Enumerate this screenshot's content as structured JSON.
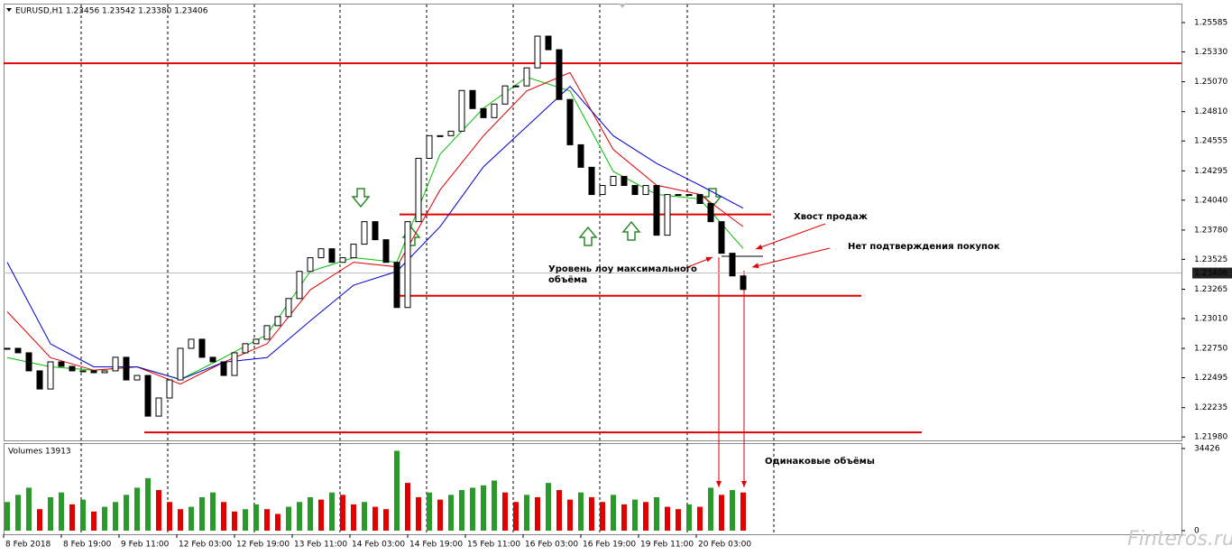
{
  "chart_data": [
    {
      "type": "candlestick",
      "title": "EURUSD,H1  1.23456 1.23542 1.23380 1.23406",
      "values": [
        1.22751,
        1.22712,
        1.22555,
        1.22397,
        1.22633,
        1.22594,
        1.22555,
        1.22555,
        1.22539,
        1.22555,
        1.22673,
        1.22476,
        1.22515,
        1.22161,
        1.22319,
        1.22476,
        1.22751,
        1.2283,
        1.22673,
        1.22633,
        1.22515,
        1.22712,
        1.22791,
        1.2283,
        1.22948,
        1.23027,
        1.23184,
        1.2342,
        1.23539,
        1.23617,
        1.23499,
        1.23539,
        1.23657,
        1.23853,
        1.23696,
        1.23499,
        1.23106,
        1.23853,
        1.24404,
        1.24601,
        1.24601,
        1.2464,
        1.24994,
        1.24837,
        1.24758,
        1.24876,
        1.25034,
        1.25034,
        1.25191,
        1.25467,
        1.25349,
        1.24916,
        1.24522,
        1.24326,
        1.24089,
        1.24168,
        1.24247,
        1.24168,
        1.24089,
        1.24168,
        1.23735,
        1.24089,
        1.24089,
        1.24089,
        1.24011,
        1.23853,
        1.23578,
        1.23381,
        1.23263
      ],
      "series": [
        {
          "color": "#00c000",
          "values": [
            1.2267,
            1.2259,
            1.2256,
            1.2259,
            1.2248,
            1.2267,
            1.2287,
            1.2342,
            1.2354,
            1.235,
            1.2444,
            1.2484,
            1.2511,
            1.2499,
            1.2429,
            1.2409,
            1.2405,
            1.2362
          ]
        },
        {
          "color": "#e00000",
          "values": [
            1.2307,
            1.2267,
            1.2256,
            1.2259,
            1.2244,
            1.2263,
            1.2279,
            1.2326,
            1.235,
            1.2346,
            1.2413,
            1.246,
            1.2499,
            1.2515,
            1.2448,
            1.2417,
            1.2409,
            1.2381
          ]
        },
        {
          "color": "#0000d0",
          "values": [
            1.235,
            1.2279,
            1.2259,
            1.2259,
            1.2248,
            1.2263,
            1.2267,
            1.2299,
            1.233,
            1.2342,
            1.2381,
            1.2433,
            1.2468,
            1.2503,
            1.246,
            1.2436,
            1.2417,
            1.2397
          ]
        }
      ],
      "ylim": [
        1.2195,
        1.2575
      ],
      "yticks": [
        1.25585,
        {
          "value": 1.2533,
          "label": "1.25330"
        },
        {
          "value": 1.2507,
          "label": "1.25070"
        },
        {
          "value": 1.2481,
          "label": "1.24810"
        },
        1.24555,
        1.24295,
        {
          "value": 1.2404,
          "label": "1.24040"
        },
        {
          "value": 1.2378,
          "label": "1.23780"
        },
        1.23525,
        1.23265,
        {
          "value": 1.2301,
          "label": "1.23010"
        },
        {
          "value": 1.2275,
          "label": "1.22750"
        },
        1.22495,
        1.22235,
        {
          "value": 1.2198,
          "label": "1.21980"
        }
      ],
      "current_price": 1.23406,
      "levels": {
        "color": "#e00000",
        "values": [
          1.25231,
          1.23916,
          1.23208,
          1.2202
        ]
      },
      "annotations": [
        "Хвост продаж",
        "Нет подтверждения покупок",
        "Уровень лоу максимального",
        "объёма",
        "Одинаковые объёмы"
      ]
    },
    {
      "type": "bar",
      "title": "Volumes 13913",
      "values": [
        12000,
        15000,
        18000,
        9000,
        14000,
        16000,
        11000,
        13000,
        8000,
        10000,
        12000,
        15000,
        18000,
        22000,
        17000,
        12000,
        9000,
        10000,
        14000,
        16000,
        12000,
        8000,
        9000,
        11000,
        9000,
        7000,
        10000,
        12000,
        14000,
        13000,
        16000,
        15000,
        11000,
        12000,
        10000,
        9000,
        33500,
        20000,
        14000,
        16000,
        13000,
        15000,
        17000,
        18000,
        19000,
        21000,
        16000,
        12000,
        15000,
        14000,
        20000,
        17000,
        13000,
        16000,
        14000,
        12000,
        15000,
        11000,
        13000,
        12000,
        14000,
        10000,
        9000,
        11000,
        10000,
        18000,
        15000,
        17000,
        16000
      ],
      "ylim": [
        0,
        34426
      ],
      "yticks": [
        0,
        34426
      ],
      "xlabels": [
        "8 Feb 2018",
        "8 Feb 19:00",
        "9 Feb 11:00",
        "12 Feb 03:00",
        "12 Feb 19:00",
        "13 Feb 11:00",
        "14 Feb 03:00",
        "14 Feb 19:00",
        "15 Feb 11:00",
        "16 Feb 03:00",
        "16 Feb 19:00",
        "19 Feb 11:00",
        "20 Feb 03:00"
      ]
    }
  ],
  "watermark": "Finteros.ru"
}
